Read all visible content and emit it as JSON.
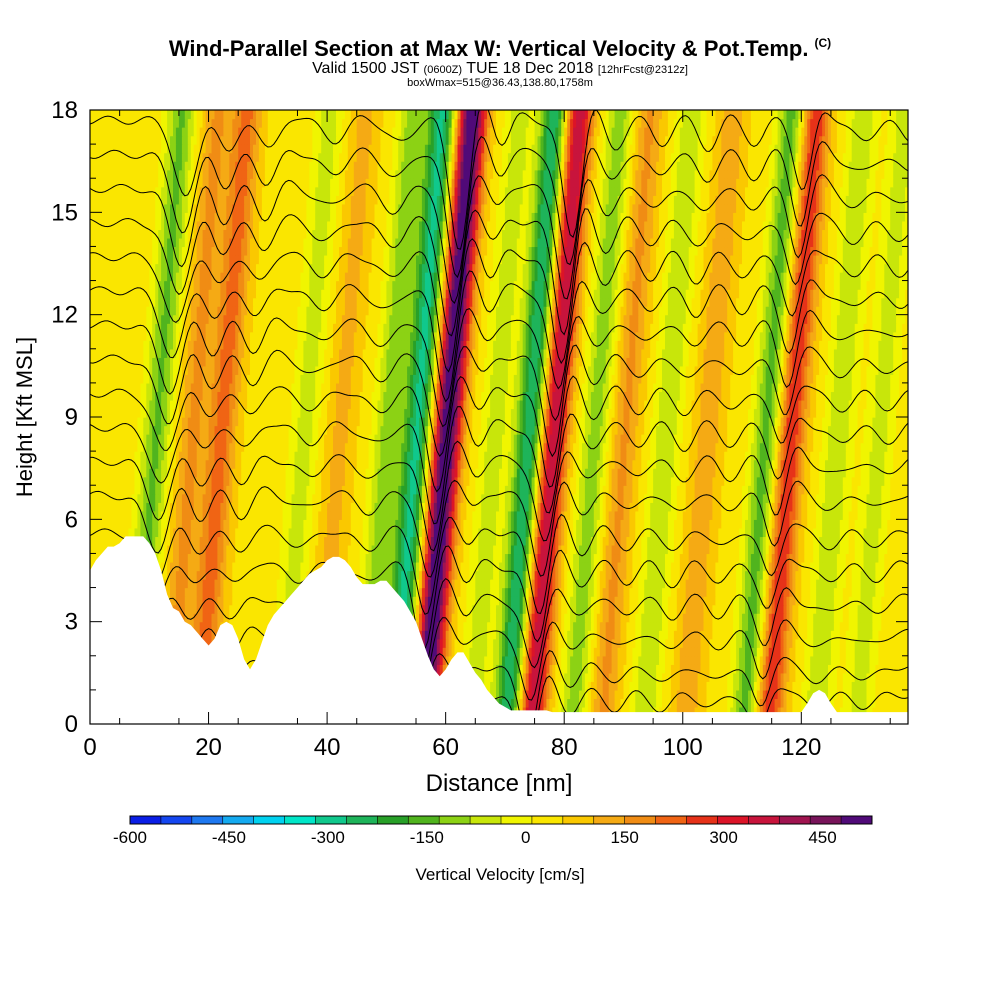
{
  "title": {
    "main": "Wind-Parallel Section at Max W: Vertical Velocity & Pot.Temp.",
    "mark": "(C)",
    "valid_prefix": "Valid 1500 JST",
    "valid_z": "(0600Z)",
    "valid_date": "TUE 18 Dec 2018",
    "fcst": "[12hrFcst@2312z]",
    "box": "boxWmax=515@36.43,138.80,1758m"
  },
  "chart_data": {
    "type": "heatmap",
    "xlabel": "Distance [nm]",
    "ylabel": "Height [Kft MSL]",
    "xlim": [
      0,
      138
    ],
    "ylim": [
      0,
      18
    ],
    "x_ticks": [
      0,
      20,
      40,
      60,
      80,
      100,
      120
    ],
    "y_ticks": [
      0,
      3,
      6,
      9,
      12,
      15,
      18
    ],
    "colorbar": {
      "label": "Vertical Velocity [cm/s]",
      "tick_values": [
        -600,
        -450,
        -300,
        -150,
        0,
        150,
        300,
        450
      ],
      "range": [
        -600,
        525
      ],
      "colors": [
        "#0a1ee6",
        "#1446f0",
        "#1e78f0",
        "#14aaf0",
        "#00d2f0",
        "#00e6c8",
        "#10c88c",
        "#1eb45a",
        "#28a028",
        "#50b41e",
        "#8cd214",
        "#c8e60a",
        "#f0f500",
        "#fae600",
        "#fac800",
        "#f5aa14",
        "#f08c14",
        "#f06414",
        "#e63219",
        "#dc1428",
        "#c8143c",
        "#a01450",
        "#78145a",
        "#500a78"
      ]
    },
    "w_features_cm_s": [
      {
        "x": 11,
        "w": -180
      },
      {
        "x": 17,
        "w": 120
      },
      {
        "x": 22,
        "w": 180
      },
      {
        "x": 36,
        "w": -100
      },
      {
        "x": 42,
        "w": 80
      },
      {
        "x": 50,
        "w": -150
      },
      {
        "x": 55,
        "w": -330
      },
      {
        "x": 60,
        "w": 515
      },
      {
        "x": 68,
        "w": -100
      },
      {
        "x": 74,
        "w": -320
      },
      {
        "x": 78,
        "w": 350
      },
      {
        "x": 85,
        "w": -150
      },
      {
        "x": 90,
        "w": 120
      },
      {
        "x": 97,
        "w": -120
      },
      {
        "x": 104,
        "w": 100
      },
      {
        "x": 114,
        "w": -200
      },
      {
        "x": 118,
        "w": 250
      },
      {
        "x": 126,
        "w": -120
      },
      {
        "x": 133,
        "w": -100
      }
    ],
    "terrain_kft": {
      "x": [
        0,
        1,
        2,
        3,
        4,
        5,
        6,
        7,
        8,
        9,
        10,
        11,
        12,
        13,
        14,
        15,
        16,
        17,
        18,
        19,
        20,
        21,
        22,
        23,
        24,
        25,
        26,
        27,
        28,
        29,
        30,
        31,
        32,
        33,
        34,
        35,
        36,
        37,
        38,
        39,
        40,
        41,
        42,
        43,
        44,
        45,
        46,
        47,
        48,
        49,
        50,
        51,
        52,
        53,
        54,
        55,
        56,
        57,
        58,
        59,
        60,
        61,
        62,
        63,
        64,
        65,
        66,
        67,
        68,
        69,
        70,
        71,
        72,
        73,
        74,
        75,
        76,
        77,
        78,
        79,
        80,
        95,
        100,
        119,
        120,
        121,
        122,
        123,
        124,
        125,
        126,
        138
      ],
      "y": [
        4.5,
        4.8,
        5.0,
        5.2,
        5.2,
        5.3,
        5.5,
        5.5,
        5.5,
        5.5,
        5.3,
        5.0,
        4.5,
        3.8,
        3.4,
        3.3,
        3.0,
        2.9,
        2.7,
        2.5,
        2.3,
        2.5,
        2.9,
        3.0,
        2.9,
        2.5,
        1.9,
        1.6,
        1.9,
        2.4,
        2.9,
        3.2,
        3.4,
        3.6,
        3.8,
        4.0,
        4.2,
        4.4,
        4.5,
        4.6,
        4.8,
        4.9,
        4.9,
        4.8,
        4.6,
        4.3,
        4.1,
        4.1,
        4.1,
        4.2,
        4.2,
        4.0,
        3.8,
        3.6,
        3.3,
        3.0,
        2.5,
        2.0,
        1.6,
        1.4,
        1.6,
        1.9,
        2.1,
        2.1,
        1.8,
        1.5,
        1.3,
        1.0,
        0.8,
        0.6,
        0.5,
        0.4,
        0.4,
        0.4,
        0.4,
        0.4,
        0.4,
        0.4,
        0.35,
        0.35,
        0.35,
        0.35,
        0.35,
        0.35,
        0.35,
        0.6,
        0.9,
        1.0,
        0.9,
        0.6,
        0.35,
        0.35
      ]
    },
    "theta_contours": {
      "levels_kft_at_left": [
        0.8,
        1.6,
        2.6,
        3.6,
        4.6,
        5.6,
        6.7,
        7.7,
        8.7,
        9.7,
        10.7,
        11.7,
        12.7,
        13.7,
        14.7,
        15.7,
        16.7,
        17.7
      ],
      "dips": [
        {
          "x": 12,
          "depth": 2.0,
          "width": 2.8
        },
        {
          "x": 19,
          "depth": 1.0,
          "width": 2.5
        },
        {
          "x": 26,
          "depth": 0.8,
          "width": 2.5
        },
        {
          "x": 37,
          "depth": 0.5,
          "width": 3.0
        },
        {
          "x": 48,
          "depth": 0.6,
          "width": 3.0
        },
        {
          "x": 58,
          "depth": 3.2,
          "width": 2.4
        },
        {
          "x": 65,
          "depth": 0.6,
          "width": 2.0
        },
        {
          "x": 77,
          "depth": 3.0,
          "width": 2.3
        },
        {
          "x": 84,
          "depth": 0.8,
          "width": 2.5
        },
        {
          "x": 92,
          "depth": 0.6,
          "width": 2.5
        },
        {
          "x": 100,
          "depth": 0.7,
          "width": 2.5
        },
        {
          "x": 108,
          "depth": 0.6,
          "width": 2.5
        },
        {
          "x": 116,
          "depth": 1.8,
          "width": 2.2
        },
        {
          "x": 126,
          "depth": 0.5,
          "width": 3.0
        },
        {
          "x": 134,
          "depth": 0.5,
          "width": 3.0
        }
      ]
    }
  }
}
